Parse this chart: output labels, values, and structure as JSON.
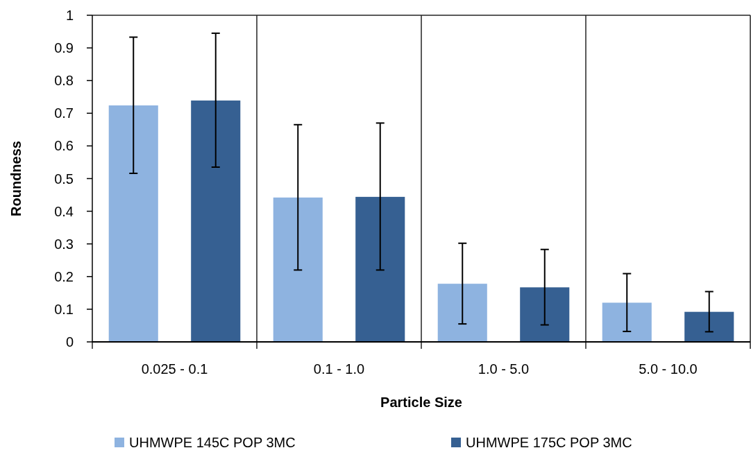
{
  "chart_data": {
    "type": "bar",
    "xlabel": "Particle Size",
    "ylabel": "Roundness",
    "categories": [
      "0.025 - 0.1",
      "0.1 - 1.0",
      "1.0 - 5.0",
      "5.0 - 10.0"
    ],
    "series": [
      {
        "name": "UHMWPE 145C POP 3MC",
        "color": "#8eb3e0",
        "values": [
          0.724,
          0.442,
          0.178,
          0.12
        ],
        "errors": [
          [
            0.516,
            0.933
          ],
          [
            0.22,
            0.665
          ],
          [
            0.055,
            0.302
          ],
          [
            0.032,
            0.209
          ]
        ]
      },
      {
        "name": "UHMWPE 175C POP 3MC",
        "color": "#366092",
        "values": [
          0.739,
          0.444,
          0.167,
          0.092
        ],
        "errors": [
          [
            0.535,
            0.945
          ],
          [
            0.22,
            0.67
          ],
          [
            0.052,
            0.283
          ],
          [
            0.031,
            0.154
          ]
        ]
      }
    ],
    "ylim": [
      0,
      1
    ],
    "yticks": [
      0,
      0.1,
      0.2,
      0.3,
      0.4,
      0.5,
      0.6,
      0.7,
      0.8,
      0.9,
      1
    ],
    "legend": "bottom",
    "grid": false
  }
}
